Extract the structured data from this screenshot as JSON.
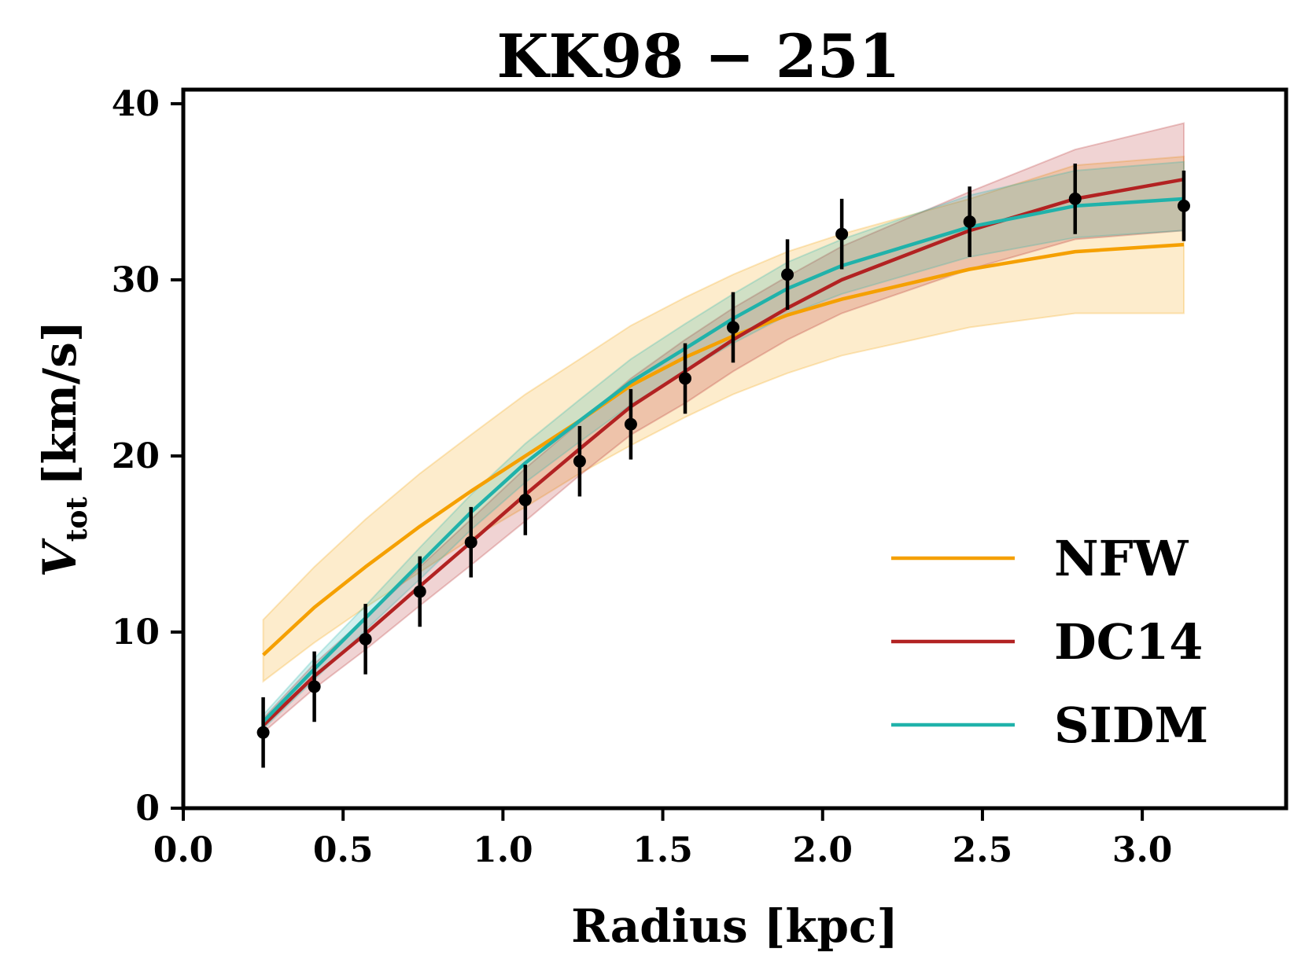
{
  "chart_data": {
    "type": "line",
    "title": "KK98 − 251",
    "xlabel": "Radius [kpc]",
    "ylabel_main": "V",
    "ylabel_sub": "tot",
    "ylabel_unit": "[km/s]",
    "xlim": [
      0.0,
      3.45
    ],
    "ylim": [
      0,
      40.8
    ],
    "xticks": [
      0.0,
      0.5,
      1.0,
      1.5,
      2.0,
      2.5,
      3.0
    ],
    "xtick_labels": [
      "0.0",
      "0.5",
      "1.0",
      "1.5",
      "2.0",
      "2.5",
      "3.0"
    ],
    "yticks": [
      0,
      10,
      20,
      30,
      40
    ],
    "ytick_labels": [
      "0",
      "10",
      "20",
      "30",
      "40"
    ],
    "grid": false,
    "legend_position": "lower-right",
    "observed": {
      "x": [
        0.25,
        0.41,
        0.57,
        0.74,
        0.9,
        1.07,
        1.24,
        1.4,
        1.57,
        1.72,
        1.89,
        2.06,
        2.46,
        2.79,
        3.13
      ],
      "y": [
        4.3,
        6.9,
        9.6,
        12.3,
        15.1,
        17.5,
        19.7,
        21.8,
        24.4,
        27.3,
        30.3,
        32.6,
        33.3,
        34.6,
        34.2
      ],
      "err": [
        2.0,
        2.0,
        2.0,
        2.0,
        2.0,
        2.0,
        2.0,
        2.0,
        2.0,
        2.0,
        2.0,
        2.0,
        2.0,
        2.0,
        2.0
      ]
    },
    "series": [
      {
        "name": "NFW",
        "color": "#f5a000",
        "x": [
          0.25,
          0.41,
          0.57,
          0.74,
          0.9,
          1.07,
          1.24,
          1.4,
          1.57,
          1.72,
          1.89,
          2.06,
          2.46,
          2.79,
          3.13
        ],
        "y": [
          8.7,
          11.4,
          13.7,
          16.0,
          18.0,
          20.0,
          22.0,
          24.0,
          25.6,
          26.8,
          28.0,
          28.9,
          30.6,
          31.6,
          32.0
        ],
        "lower": [
          7.2,
          9.4,
          11.4,
          13.4,
          15.3,
          17.1,
          19.0,
          20.6,
          22.2,
          23.5,
          24.7,
          25.7,
          27.3,
          28.1,
          28.1
        ],
        "upper": [
          10.7,
          13.7,
          16.4,
          19.0,
          21.2,
          23.5,
          25.5,
          27.4,
          29.0,
          30.3,
          31.6,
          32.6,
          34.6,
          36.5,
          37.0
        ]
      },
      {
        "name": "DC14",
        "color": "#b22222",
        "x": [
          0.25,
          0.41,
          0.57,
          0.74,
          0.9,
          1.07,
          1.24,
          1.4,
          1.57,
          1.72,
          1.89,
          2.06,
          2.46,
          2.79,
          3.13
        ],
        "y": [
          4.7,
          7.5,
          9.9,
          12.6,
          15.1,
          17.8,
          20.4,
          22.8,
          24.8,
          26.6,
          28.4,
          30.0,
          32.8,
          34.6,
          35.7
        ],
        "lower": [
          4.3,
          6.8,
          9.0,
          11.5,
          13.8,
          16.3,
          18.9,
          21.2,
          23.0,
          24.8,
          26.6,
          28.1,
          30.6,
          32.3,
          32.8
        ],
        "upper": [
          5.1,
          8.2,
          10.8,
          13.7,
          16.4,
          19.3,
          21.9,
          24.4,
          26.6,
          28.4,
          30.2,
          31.9,
          35.0,
          37.4,
          38.9
        ]
      },
      {
        "name": "SIDM",
        "color": "#20b2aa",
        "x": [
          0.25,
          0.41,
          0.57,
          0.74,
          0.9,
          1.07,
          1.24,
          1.4,
          1.57,
          1.72,
          1.89,
          2.06,
          2.46,
          2.79,
          3.13
        ],
        "y": [
          4.9,
          7.9,
          10.8,
          13.9,
          16.8,
          19.6,
          22.0,
          24.2,
          26.1,
          27.8,
          29.5,
          30.8,
          33.0,
          34.2,
          34.6
        ],
        "lower": [
          4.5,
          7.3,
          10.1,
          13.0,
          15.8,
          18.5,
          20.8,
          22.9,
          24.8,
          26.4,
          28.0,
          29.2,
          31.3,
          32.4,
          32.8
        ],
        "upper": [
          5.3,
          8.5,
          11.5,
          14.8,
          17.8,
          20.7,
          23.2,
          25.5,
          27.5,
          29.2,
          31.0,
          32.3,
          34.8,
          36.2,
          36.7
        ]
      }
    ]
  }
}
